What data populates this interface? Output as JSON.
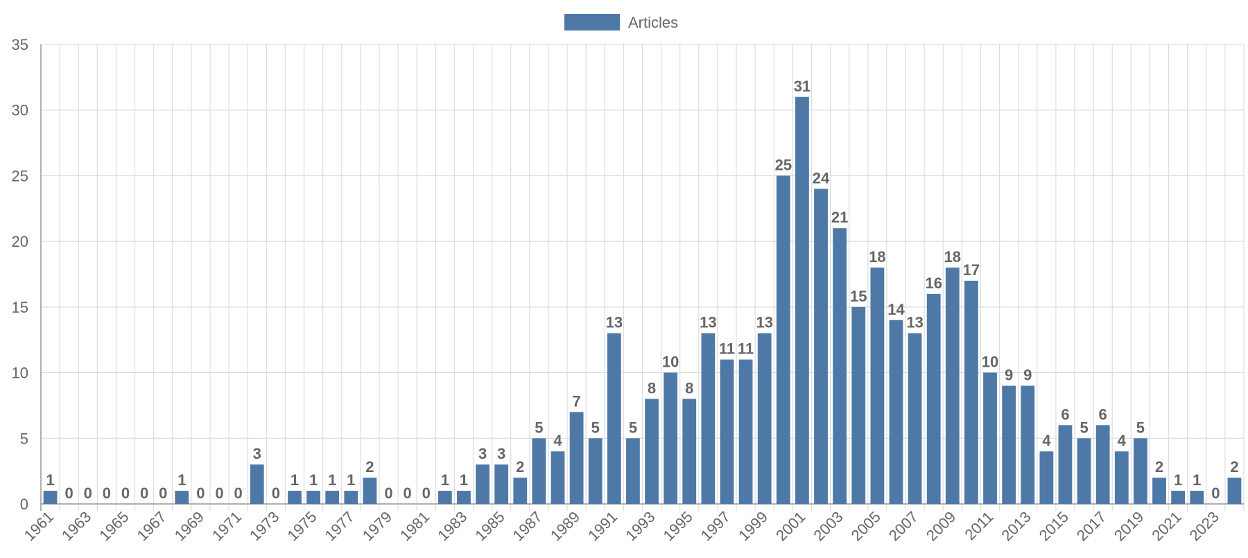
{
  "chart_data": {
    "type": "bar",
    "title": "",
    "xlabel": "",
    "ylabel": "",
    "ylim": [
      0,
      35
    ],
    "yticks": [
      0,
      5,
      10,
      15,
      20,
      25,
      30,
      35
    ],
    "grid": true,
    "legend_position": "top-center",
    "bar_color": "#4e79a7",
    "categories": [
      "1961",
      "1962",
      "1963",
      "1964",
      "1965",
      "1966",
      "1967",
      "1968",
      "1969",
      "1970",
      "1971",
      "1972",
      "1973",
      "1974",
      "1975",
      "1976",
      "1977",
      "1978",
      "1979",
      "1980",
      "1981",
      "1982",
      "1983",
      "1984",
      "1985",
      "1986",
      "1987",
      "1988",
      "1989",
      "1990",
      "1991",
      "1992",
      "1993",
      "1994",
      "1995",
      "1996",
      "1997",
      "1998",
      "1999",
      "2000",
      "2001",
      "2002",
      "2003",
      "2004",
      "2005",
      "2006",
      "2007",
      "2008",
      "2009",
      "2010",
      "2011",
      "2012",
      "2013",
      "2014",
      "2015",
      "2016",
      "2017",
      "2018",
      "2019",
      "2020",
      "2021",
      "2022",
      "2023",
      "2024"
    ],
    "x_tick_labels": [
      "1961",
      "1963",
      "1965",
      "1967",
      "1969",
      "1971",
      "1973",
      "1975",
      "1977",
      "1979",
      "1981",
      "1983",
      "1985",
      "1987",
      "1989",
      "1991",
      "1993",
      "1995",
      "1997",
      "1999",
      "2001",
      "2003",
      "2005",
      "2007",
      "2009",
      "2011",
      "2013",
      "2015",
      "2017",
      "2019",
      "2021",
      "2023"
    ],
    "series": [
      {
        "name": "Articles",
        "values": [
          1,
          0,
          0,
          0,
          0,
          0,
          0,
          1,
          0,
          0,
          0,
          3,
          0,
          1,
          1,
          1,
          1,
          2,
          0,
          0,
          0,
          1,
          1,
          3,
          3,
          2,
          5,
          4,
          7,
          5,
          13,
          5,
          8,
          10,
          8,
          13,
          11,
          11,
          13,
          25,
          31,
          24,
          21,
          15,
          18,
          14,
          13,
          16,
          18,
          17,
          10,
          9,
          9,
          4,
          6,
          5,
          6,
          4,
          5,
          2,
          1,
          1,
          0,
          2
        ]
      }
    ]
  }
}
